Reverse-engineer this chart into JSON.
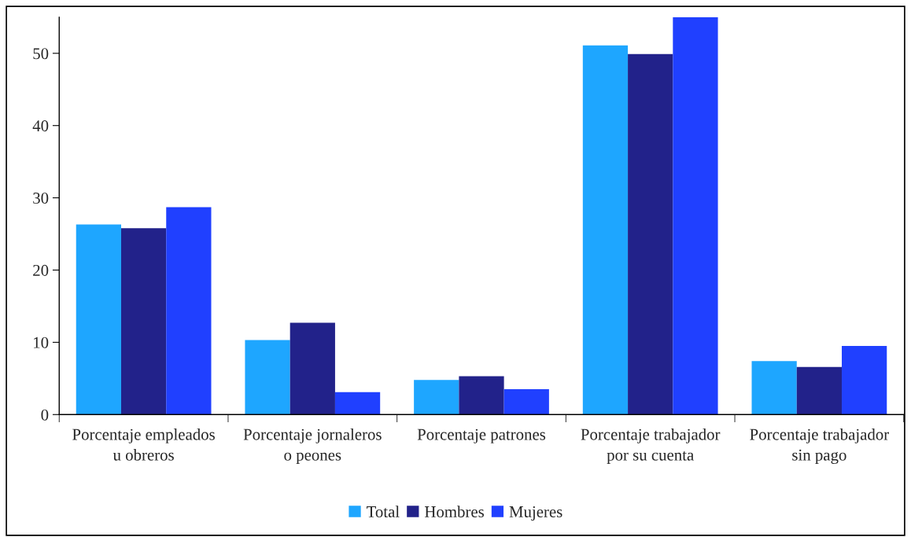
{
  "chart_data": {
    "type": "bar",
    "categories": [
      "Porcentaje empleados u obreros",
      "Porcentaje jornaleros o peones",
      "Porcentaje patrones",
      "Porcentaje trabajador por su cuenta",
      "Porcentaje trabajador sin pago"
    ],
    "series": [
      {
        "name": "Total",
        "color": "#1ea6ff",
        "values": [
          26.3,
          10.3,
          4.8,
          51.1,
          7.4
        ]
      },
      {
        "name": "Hombres",
        "color": "#22228a",
        "values": [
          25.8,
          12.7,
          5.3,
          49.9,
          6.6
        ]
      },
      {
        "name": "Mujeres",
        "color": "#2040ff",
        "values": [
          28.7,
          3.1,
          3.5,
          55.0,
          9.5
        ]
      }
    ],
    "ylim": [
      0,
      55
    ],
    "yticks": [
      0,
      10,
      20,
      30,
      40,
      50
    ],
    "grid": false,
    "legend": "bottom"
  }
}
